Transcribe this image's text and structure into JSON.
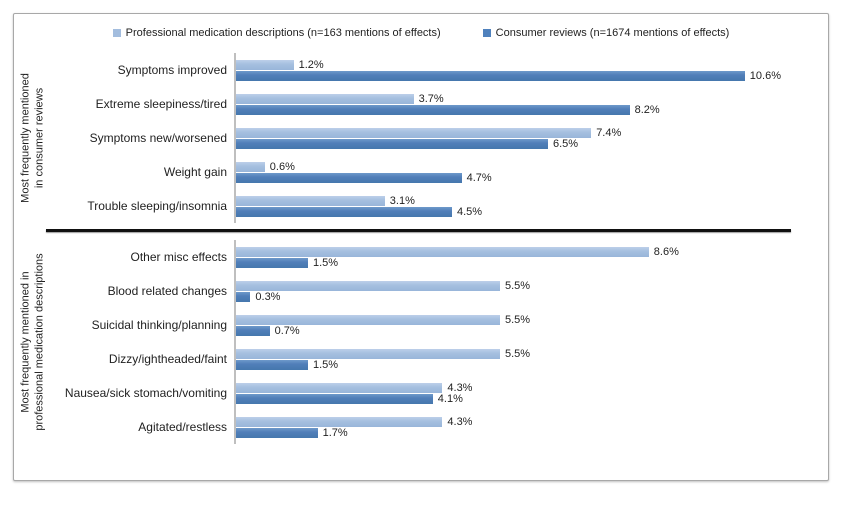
{
  "chart_data": {
    "type": "bar",
    "orientation": "horizontal",
    "title": "",
    "value_unit": "%",
    "xlim": [
      0,
      12
    ],
    "grid": false,
    "legend_position": "top-center",
    "series": [
      {
        "key": "professional",
        "name": "Professional medication descriptions (n=163 mentions of effects)",
        "color": "#a3bdde"
      },
      {
        "key": "consumer",
        "name": "Consumer reviews (n=1674 mentions of effects)",
        "color": "#4f81bd"
      }
    ],
    "sections": [
      {
        "axis_label_lines": [
          "Most frequently mentioned",
          "in consumer reviews"
        ],
        "rows": [
          {
            "category": "Symptoms improved",
            "professional": 1.2,
            "consumer": 10.6
          },
          {
            "category": "Extreme sleepiness/tired",
            "professional": 3.7,
            "consumer": 8.2
          },
          {
            "category": "Symptoms new/worsened",
            "professional": 7.4,
            "consumer": 6.5
          },
          {
            "category": "Weight gain",
            "professional": 0.6,
            "consumer": 4.7
          },
          {
            "category": "Trouble sleeping/insomnia",
            "professional": 3.1,
            "consumer": 4.5
          }
        ]
      },
      {
        "axis_label_lines": [
          "Most frequently mentioned in",
          "professional medication descriptions"
        ],
        "rows": [
          {
            "category": "Other misc effects",
            "professional": 8.6,
            "consumer": 1.5
          },
          {
            "category": "Blood related changes",
            "professional": 5.5,
            "consumer": 0.3
          },
          {
            "category": "Suicidal thinking/planning",
            "professional": 5.5,
            "consumer": 0.7
          },
          {
            "category": "Dizzy/ightheaded/faint",
            "professional": 5.5,
            "consumer": 1.5
          },
          {
            "category": "Nausea/sick stomach/vomiting",
            "professional": 4.3,
            "consumer": 4.1
          },
          {
            "category": "Agitated/restless",
            "professional": 4.3,
            "consumer": 1.7
          }
        ]
      }
    ]
  }
}
